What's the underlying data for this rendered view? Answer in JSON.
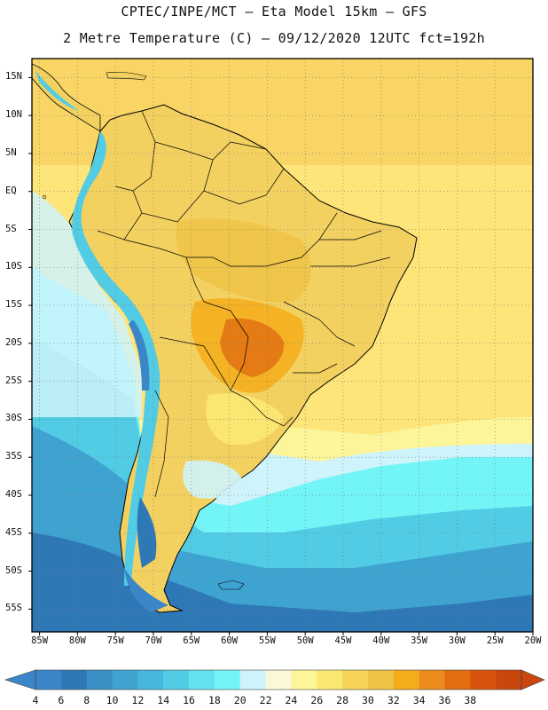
{
  "header": {
    "line1": "CPTEC/INPE/MCT –  Eta Model 15km – GFS",
    "line2": "2 Metre Temperature (C) – 09/12/2020 12UTC fct=192h"
  },
  "map": {
    "lat_ticks": [
      {
        "value": 15,
        "label": "15N"
      },
      {
        "value": 10,
        "label": "10N"
      },
      {
        "value": 5,
        "label": "5N"
      },
      {
        "value": 0,
        "label": "EQ"
      },
      {
        "value": -5,
        "label": "5S"
      },
      {
        "value": -10,
        "label": "10S"
      },
      {
        "value": -15,
        "label": "15S"
      },
      {
        "value": -20,
        "label": "20S"
      },
      {
        "value": -25,
        "label": "25S"
      },
      {
        "value": -30,
        "label": "30S"
      },
      {
        "value": -35,
        "label": "35S"
      },
      {
        "value": -40,
        "label": "40S"
      },
      {
        "value": -45,
        "label": "45S"
      },
      {
        "value": -50,
        "label": "50S"
      },
      {
        "value": -55,
        "label": "55S"
      }
    ],
    "lon_ticks": [
      {
        "value": -85,
        "label": "85W"
      },
      {
        "value": -80,
        "label": "80W"
      },
      {
        "value": -75,
        "label": "75W"
      },
      {
        "value": -70,
        "label": "70W"
      },
      {
        "value": -65,
        "label": "65W"
      },
      {
        "value": -60,
        "label": "60W"
      },
      {
        "value": -55,
        "label": "55W"
      },
      {
        "value": -50,
        "label": "50W"
      },
      {
        "value": -45,
        "label": "45W"
      },
      {
        "value": -40,
        "label": "40W"
      },
      {
        "value": -35,
        "label": "35W"
      },
      {
        "value": -30,
        "label": "30W"
      },
      {
        "value": -25,
        "label": "25W"
      },
      {
        "value": -20,
        "label": "20W"
      }
    ],
    "lat_range": [
      -58,
      17.5
    ],
    "lon_range": [
      -86,
      -20
    ]
  },
  "colorbar": {
    "labels": [
      "4",
      "6",
      "8",
      "10",
      "12",
      "14",
      "16",
      "18",
      "20",
      "22",
      "24",
      "26",
      "28",
      "30",
      "32",
      "34",
      "36",
      "38"
    ],
    "colors": [
      "#3a86c8",
      "#2f78b6",
      "#3a8fc4",
      "#3fa3d2",
      "#45b6dc",
      "#52cce4",
      "#63e2ee",
      "#73f5f8",
      "#cff3fb",
      "#fbf8d8",
      "#fdf59a",
      "#fbe872",
      "#f5d458",
      "#efc345",
      "#f3ad1a",
      "#eb8c1c",
      "#e06d10",
      "#d8530b",
      "#c9470c"
    ],
    "low_end_color": "#3a86c8",
    "high_end_color": "#c9470c"
  }
}
